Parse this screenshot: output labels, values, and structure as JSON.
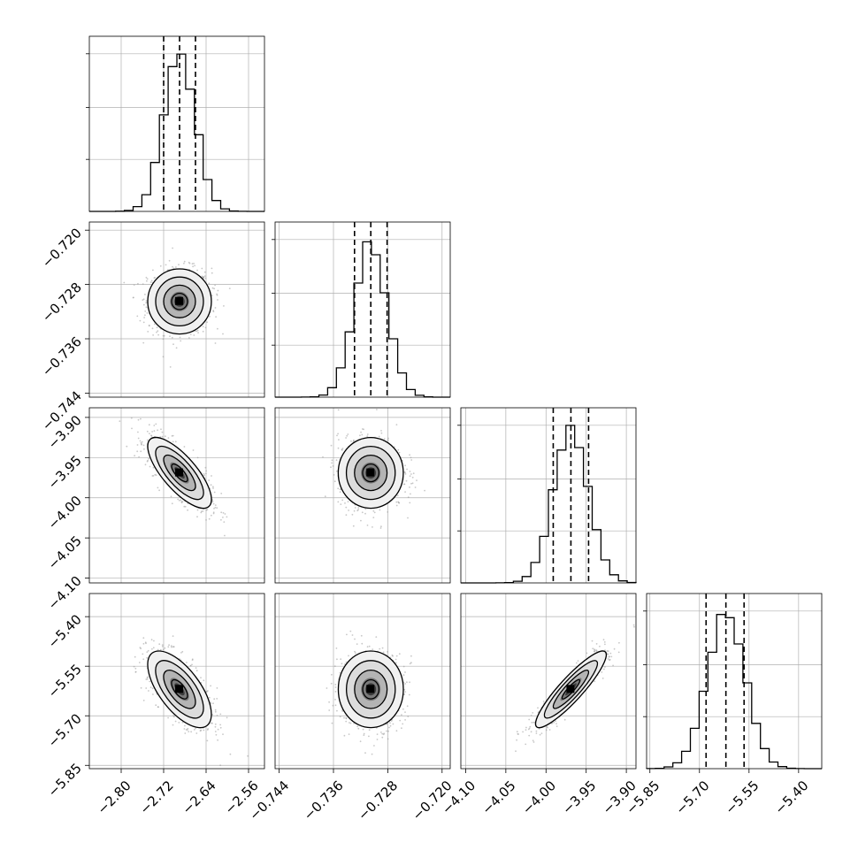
{
  "chart_data": {
    "type": "corner",
    "grid": true,
    "parameters": [
      {
        "mean": -2.69,
        "sd": 0.03,
        "quantiles": [
          -2.72,
          -2.69,
          -2.66
        ],
        "range": [
          -2.86,
          -2.53
        ],
        "ticks": [
          -2.8,
          -2.72,
          -2.64,
          -2.56
        ],
        "tick_labels": [
          "−2.80",
          "−2.72",
          "−2.64",
          "−2.56"
        ]
      },
      {
        "mean": -0.7305,
        "sd": 0.0024,
        "quantiles": [
          -0.7329,
          -0.7305,
          -0.7281
        ],
        "range": [
          -0.7446,
          -0.7188
        ],
        "ticks": [
          -0.744,
          -0.736,
          -0.728,
          -0.72
        ],
        "tick_labels": [
          "−0.744",
          "−0.736",
          "−0.728",
          "−0.720"
        ]
      },
      {
        "mean": -3.969,
        "sd": 0.022,
        "quantiles": [
          -3.991,
          -3.969,
          -3.947
        ],
        "range": [
          -4.106,
          -3.888
        ],
        "ticks": [
          -4.1,
          -4.05,
          -4.0,
          -3.95,
          -3.9
        ],
        "tick_labels": [
          "−4.10",
          "−4.05",
          "−4.00",
          "−3.95",
          "−3.90"
        ]
      },
      {
        "mean": -5.62,
        "sd": 0.058,
        "quantiles": [
          -5.68,
          -5.62,
          -5.565
        ],
        "range": [
          -5.86,
          -5.33
        ],
        "ticks": [
          -5.85,
          -5.7,
          -5.55,
          -5.4
        ],
        "tick_labels": [
          "−5.85",
          "−5.70",
          "−5.55",
          "−5.40"
        ]
      }
    ],
    "correlations": [
      {
        "x": 0,
        "y": 1,
        "r": 0.0
      },
      {
        "x": 0,
        "y": 2,
        "r": -0.75
      },
      {
        "x": 1,
        "y": 2,
        "r": 0.0
      },
      {
        "x": 0,
        "y": 3,
        "r": -0.65
      },
      {
        "x": 1,
        "y": 3,
        "r": 0.0
      },
      {
        "x": 2,
        "y": 3,
        "r": 0.9
      }
    ],
    "histogram_bins": 20,
    "contour_levels_sigma": [
      0.5,
      1.0,
      1.5,
      2.0
    ],
    "colors": {
      "line": "#000000",
      "grid": "#b0b0b0",
      "scatter": "#9a9a9a"
    }
  }
}
